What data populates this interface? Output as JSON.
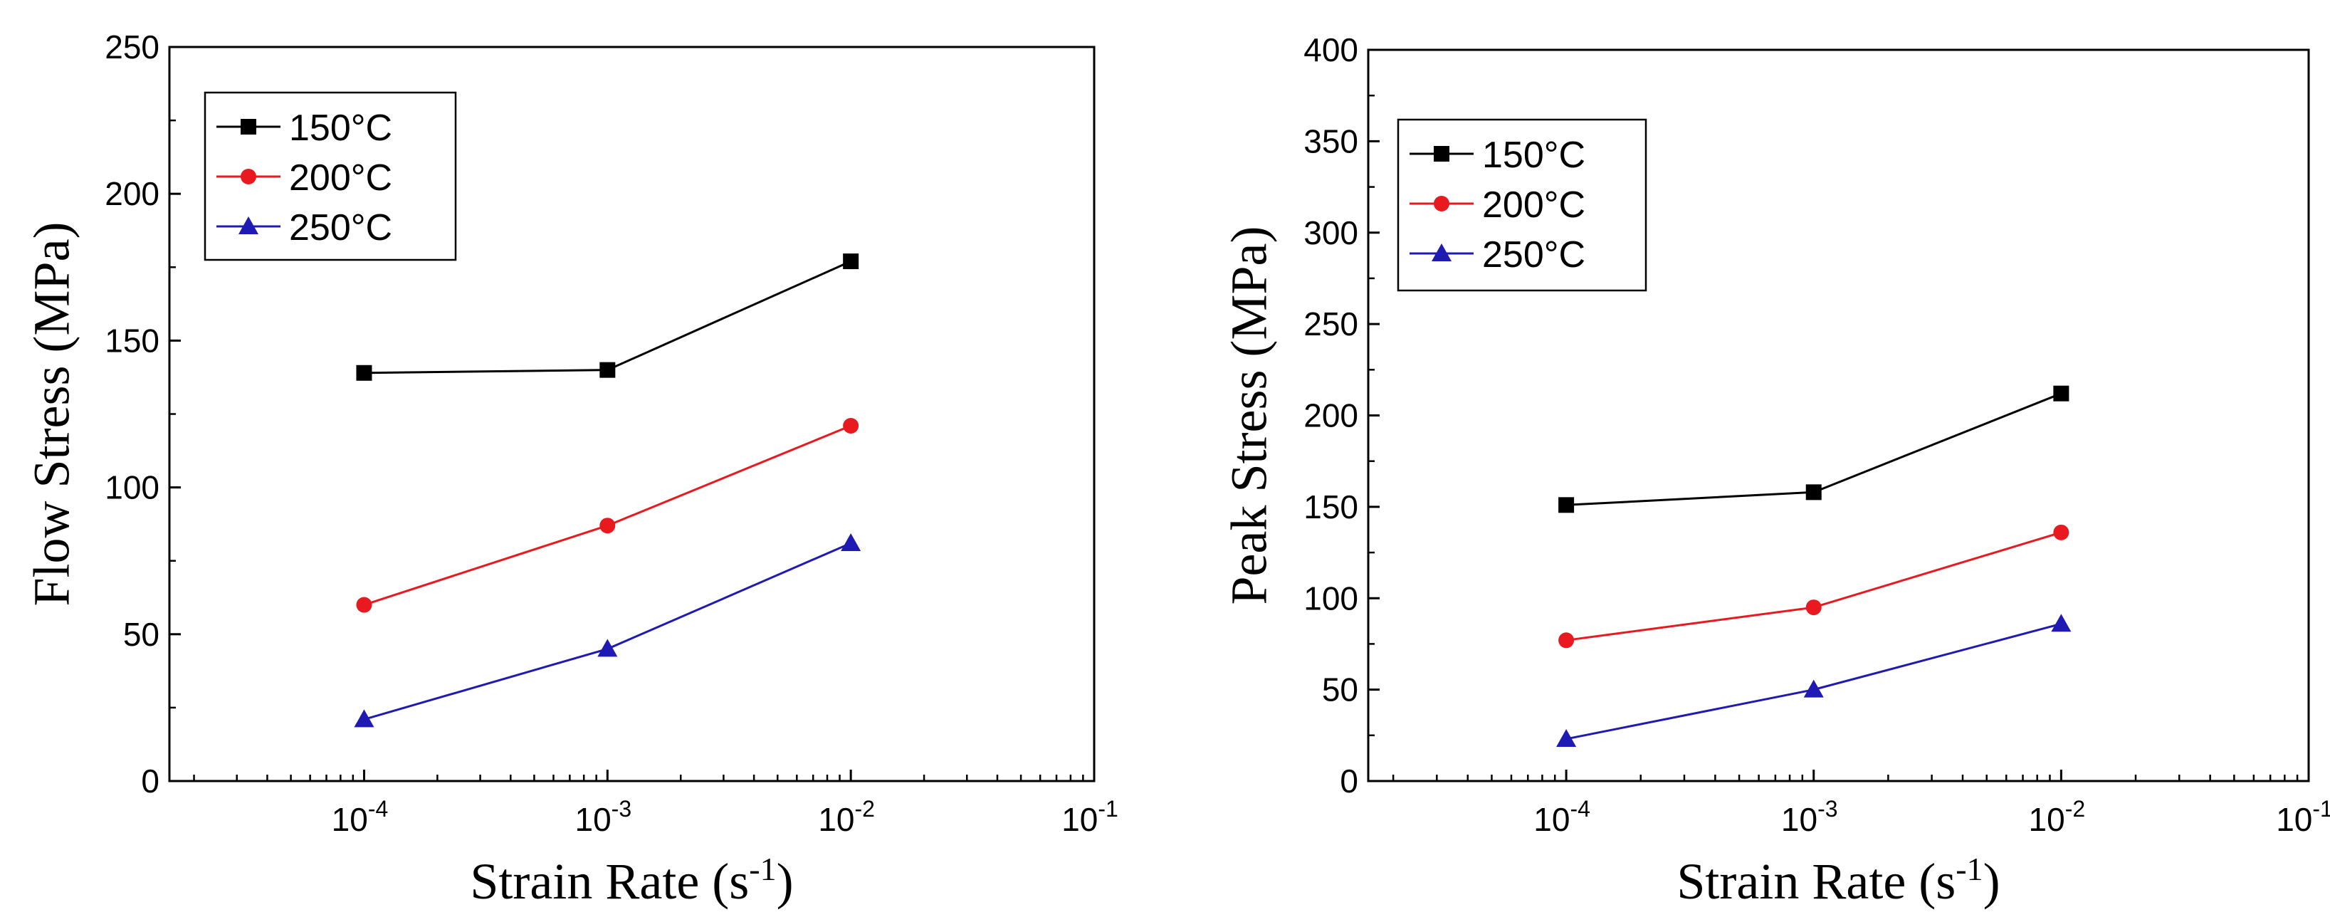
{
  "chart_data": [
    {
      "type": "line",
      "title": "",
      "xscale": "log",
      "xlabel": "Strain Rate (s",
      "xlabel_sup": "-1",
      "xlabel_end": ")",
      "ylabel": "Flow Stress (MPa)",
      "xlim_exp": [
        -4.8,
        -1
      ],
      "ylim": [
        0,
        250
      ],
      "yticks": [
        "0",
        "50",
        "100",
        "150",
        "200",
        "250"
      ],
      "xticks": [
        {
          "base": "10",
          "exp": "-4"
        },
        {
          "base": "10",
          "exp": "-3"
        },
        {
          "base": "10",
          "exp": "-2"
        },
        {
          "base": "10",
          "exp": "-1"
        }
      ],
      "legend_position": "top-left",
      "x_exp": [
        -4,
        -3,
        -2
      ],
      "series": [
        {
          "name": "150°C",
          "color": "#000000",
          "marker": "square",
          "values": [
            139,
            140,
            177
          ]
        },
        {
          "name": "200°C",
          "color": "#e8191f",
          "marker": "circle",
          "values": [
            60,
            87,
            121
          ]
        },
        {
          "name": "250°C",
          "color": "#1f1ab3",
          "marker": "triangle",
          "values": [
            21,
            45,
            81
          ]
        }
      ]
    },
    {
      "type": "line",
      "title": "",
      "xscale": "log",
      "xlabel": "Strain Rate (s",
      "xlabel_sup": "-1",
      "xlabel_end": ")",
      "ylabel": "Peak Stress (MPa)",
      "xlim_exp": [
        -4.8,
        -1
      ],
      "ylim": [
        0,
        400
      ],
      "yticks": [
        "0",
        "50",
        "100",
        "150",
        "200",
        "250",
        "300",
        "350",
        "400"
      ],
      "xticks": [
        {
          "base": "10",
          "exp": "-4"
        },
        {
          "base": "10",
          "exp": "-3"
        },
        {
          "base": "10",
          "exp": "-2"
        },
        {
          "base": "10",
          "exp": "-1"
        }
      ],
      "legend_position": "top-left",
      "x_exp": [
        -4,
        -3,
        -2
      ],
      "series": [
        {
          "name": "150°C",
          "color": "#000000",
          "marker": "square",
          "values": [
            151,
            158,
            212
          ]
        },
        {
          "name": "200°C",
          "color": "#e8191f",
          "marker": "circle",
          "values": [
            77,
            95,
            136
          ]
        },
        {
          "name": "250°C",
          "color": "#1f1ab3",
          "marker": "triangle",
          "values": [
            23,
            50,
            86
          ]
        }
      ]
    }
  ]
}
